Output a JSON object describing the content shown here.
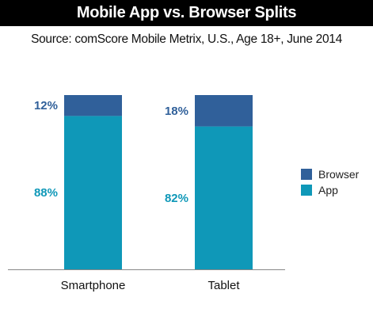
{
  "header": {
    "title": "Mobile App vs. Browser Splits",
    "subtitle": "Source: comScore Mobile Metrix, U.S., Age 18+, June 2014"
  },
  "colors": {
    "browser": "#30609a",
    "app": "#0f98b8",
    "title_bg": "#000000",
    "axis": "#888888"
  },
  "chart_data": {
    "type": "bar",
    "stacked": true,
    "categories": [
      "Smartphone",
      "Tablet"
    ],
    "series": [
      {
        "name": "App",
        "values": [
          88,
          82
        ],
        "labels": [
          "88%",
          "82%"
        ]
      },
      {
        "name": "Browser",
        "values": [
          12,
          18
        ],
        "labels": [
          "12%",
          "18%"
        ]
      }
    ],
    "ylim": [
      0,
      100
    ],
    "legend_position": "right",
    "grid": false
  },
  "legend": {
    "items": [
      {
        "name": "Browser",
        "color": "#30609a"
      },
      {
        "name": "App",
        "color": "#0f98b8"
      }
    ]
  }
}
